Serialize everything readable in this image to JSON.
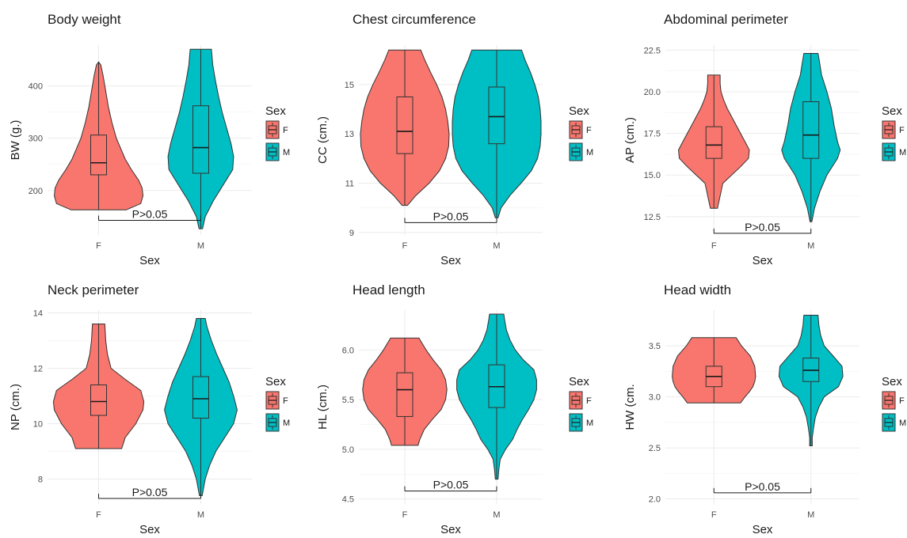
{
  "colors": {
    "F": "#F8766D",
    "M": "#00BFC4",
    "grid": "#ebebeb",
    "ink": "#1a1a1a"
  },
  "legend": {
    "title": "Sex",
    "entries": [
      "F",
      "M"
    ]
  },
  "chart_data": [
    {
      "type": "violin",
      "title": "Body weight",
      "xlabel": "Sex",
      "ylabel": "BW (g.)",
      "categories": [
        "F",
        "M"
      ],
      "ylim": [
        115,
        478
      ],
      "yticks": [
        200,
        300,
        400
      ],
      "yticklabels": [
        "200",
        "300",
        "400"
      ],
      "significance": {
        "label": "P>0.05",
        "y": 143
      },
      "groups": [
        {
          "name": "F",
          "min": 163,
          "max": 446,
          "q1": 230,
          "median": 253,
          "q3": 306,
          "profile": [
            [
              163,
              0.62
            ],
            [
              175,
              0.95
            ],
            [
              190,
              1.0
            ],
            [
              205,
              0.98
            ],
            [
              220,
              0.9
            ],
            [
              240,
              0.74
            ],
            [
              260,
              0.6
            ],
            [
              280,
              0.5
            ],
            [
              300,
              0.4
            ],
            [
              330,
              0.3
            ],
            [
              360,
              0.22
            ],
            [
              390,
              0.16
            ],
            [
              420,
              0.1
            ],
            [
              440,
              0.05
            ],
            [
              446,
              0.0
            ]
          ]
        },
        {
          "name": "M",
          "min": 127,
          "max": 470,
          "q1": 233,
          "median": 282,
          "q3": 362,
          "profile": [
            [
              127,
              0.04
            ],
            [
              150,
              0.1
            ],
            [
              180,
              0.28
            ],
            [
              210,
              0.5
            ],
            [
              240,
              0.72
            ],
            [
              265,
              0.74
            ],
            [
              290,
              0.68
            ],
            [
              320,
              0.58
            ],
            [
              350,
              0.48
            ],
            [
              380,
              0.4
            ],
            [
              410,
              0.33
            ],
            [
              440,
              0.27
            ],
            [
              470,
              0.24
            ]
          ]
        }
      ]
    },
    {
      "type": "violin",
      "title": "Chest circumference",
      "xlabel": "Sex",
      "ylabel": "CC (cm.)",
      "categories": [
        "F",
        "M"
      ],
      "ylim": [
        8.9,
        16.6
      ],
      "yticks": [
        9,
        11,
        13,
        15
      ],
      "yticklabels": [
        "9",
        "11",
        "13",
        "15"
      ],
      "significance": {
        "label": "P>0.05",
        "y": 9.4
      },
      "groups": [
        {
          "name": "F",
          "min": 10.1,
          "max": 16.4,
          "q1": 12.2,
          "median": 13.1,
          "q3": 14.5,
          "profile": [
            [
              10.1,
              0.06
            ],
            [
              10.5,
              0.25
            ],
            [
              11.0,
              0.55
            ],
            [
              11.5,
              0.78
            ],
            [
              12.0,
              0.92
            ],
            [
              12.5,
              0.99
            ],
            [
              13.0,
              1.0
            ],
            [
              13.5,
              0.97
            ],
            [
              14.0,
              0.92
            ],
            [
              14.5,
              0.84
            ],
            [
              15.0,
              0.72
            ],
            [
              15.5,
              0.58
            ],
            [
              16.0,
              0.45
            ],
            [
              16.4,
              0.36
            ]
          ]
        },
        {
          "name": "M",
          "min": 9.6,
          "max": 16.4,
          "q1": 12.6,
          "median": 13.7,
          "q3": 14.9,
          "profile": [
            [
              9.6,
              0.03
            ],
            [
              10.0,
              0.1
            ],
            [
              10.5,
              0.3
            ],
            [
              11.0,
              0.55
            ],
            [
              11.5,
              0.78
            ],
            [
              12.0,
              0.92
            ],
            [
              12.5,
              0.98
            ],
            [
              13.0,
              1.0
            ],
            [
              13.5,
              1.0
            ],
            [
              14.0,
              0.98
            ],
            [
              14.5,
              0.94
            ],
            [
              15.0,
              0.86
            ],
            [
              15.5,
              0.76
            ],
            [
              16.0,
              0.64
            ],
            [
              16.4,
              0.56
            ]
          ]
        }
      ]
    },
    {
      "type": "violin",
      "title": "Abdominal perimeter",
      "xlabel": "Sex",
      "ylabel": "AP (cm.)",
      "categories": [
        "F",
        "M"
      ],
      "ylim": [
        11.4,
        22.8
      ],
      "yticks": [
        12.5,
        15.0,
        17.5,
        20.0,
        22.5
      ],
      "yticklabels": [
        "12.5",
        "15.0",
        "17.5",
        "20.0",
        "22.5"
      ],
      "significance": {
        "label": "P>0.05",
        "y": 11.5
      },
      "groups": [
        {
          "name": "F",
          "min": 13.0,
          "max": 21.0,
          "q1": 16.0,
          "median": 16.8,
          "q3": 17.9,
          "profile": [
            [
              13.0,
              0.08
            ],
            [
              13.5,
              0.12
            ],
            [
              14.5,
              0.2
            ],
            [
              15.5,
              0.6
            ],
            [
              16.0,
              0.78
            ],
            [
              16.5,
              0.8
            ],
            [
              17.0,
              0.7
            ],
            [
              17.5,
              0.6
            ],
            [
              18.0,
              0.5
            ],
            [
              18.5,
              0.4
            ],
            [
              19.0,
              0.3
            ],
            [
              19.5,
              0.22
            ],
            [
              20.0,
              0.16
            ],
            [
              20.5,
              0.14
            ],
            [
              21.0,
              0.14
            ]
          ]
        },
        {
          "name": "M",
          "min": 12.2,
          "max": 22.3,
          "q1": 16.0,
          "median": 17.4,
          "q3": 19.4,
          "profile": [
            [
              12.2,
              0.02
            ],
            [
              13.0,
              0.08
            ],
            [
              14.0,
              0.2
            ],
            [
              15.0,
              0.36
            ],
            [
              16.0,
              0.6
            ],
            [
              16.5,
              0.66
            ],
            [
              17.0,
              0.6
            ],
            [
              18.0,
              0.52
            ],
            [
              19.0,
              0.46
            ],
            [
              20.0,
              0.36
            ],
            [
              21.0,
              0.24
            ],
            [
              22.0,
              0.18
            ],
            [
              22.3,
              0.16
            ]
          ]
        }
      ]
    },
    {
      "type": "violin",
      "title": "Neck perimeter",
      "xlabel": "Sex",
      "ylabel": "NP (cm.)",
      "categories": [
        "F",
        "M"
      ],
      "ylim": [
        7.1,
        14.1
      ],
      "yticks": [
        8,
        10,
        12,
        14
      ],
      "yticklabels": [
        "8",
        "10",
        "12",
        "14"
      ],
      "significance": {
        "label": "P>0.05",
        "y": 7.3
      },
      "groups": [
        {
          "name": "F",
          "min": 9.1,
          "max": 13.6,
          "q1": 10.3,
          "median": 10.8,
          "q3": 11.4,
          "profile": [
            [
              9.1,
              0.52
            ],
            [
              9.5,
              0.6
            ],
            [
              10.0,
              0.84
            ],
            [
              10.5,
              1.0
            ],
            [
              10.8,
              1.02
            ],
            [
              11.2,
              0.95
            ],
            [
              11.6,
              0.6
            ],
            [
              12.0,
              0.28
            ],
            [
              12.5,
              0.2
            ],
            [
              13.0,
              0.16
            ],
            [
              13.6,
              0.14
            ]
          ]
        },
        {
          "name": "M",
          "min": 7.4,
          "max": 13.8,
          "q1": 10.2,
          "median": 10.9,
          "q3": 11.7,
          "profile": [
            [
              7.4,
              0.03
            ],
            [
              8.0,
              0.1
            ],
            [
              8.5,
              0.2
            ],
            [
              9.0,
              0.34
            ],
            [
              9.5,
              0.54
            ],
            [
              10.0,
              0.74
            ],
            [
              10.5,
              0.82
            ],
            [
              11.0,
              0.74
            ],
            [
              11.5,
              0.64
            ],
            [
              12.0,
              0.5
            ],
            [
              12.5,
              0.36
            ],
            [
              13.0,
              0.24
            ],
            [
              13.5,
              0.14
            ],
            [
              13.8,
              0.1
            ]
          ]
        }
      ]
    },
    {
      "type": "violin",
      "title": "Head length",
      "xlabel": "Sex",
      "ylabel": "HL (cm.)",
      "categories": [
        "F",
        "M"
      ],
      "ylim": [
        4.45,
        6.4
      ],
      "yticks": [
        4.5,
        5.0,
        5.5,
        6.0
      ],
      "yticklabels": [
        "4.5",
        "5.0",
        "5.5",
        "6.0"
      ],
      "significance": {
        "label": "P>0.05",
        "y": 4.58
      },
      "groups": [
        {
          "name": "F",
          "min": 5.04,
          "max": 6.12,
          "q1": 5.33,
          "median": 5.6,
          "q3": 5.77,
          "profile": [
            [
              5.04,
              0.3
            ],
            [
              5.1,
              0.34
            ],
            [
              5.2,
              0.44
            ],
            [
              5.3,
              0.62
            ],
            [
              5.4,
              0.82
            ],
            [
              5.5,
              0.92
            ],
            [
              5.6,
              0.95
            ],
            [
              5.7,
              0.92
            ],
            [
              5.8,
              0.82
            ],
            [
              5.9,
              0.64
            ],
            [
              6.0,
              0.48
            ],
            [
              6.12,
              0.32
            ]
          ]
        },
        {
          "name": "M",
          "min": 4.7,
          "max": 6.36,
          "q1": 5.42,
          "median": 5.63,
          "q3": 5.85,
          "profile": [
            [
              4.7,
              0.03
            ],
            [
              4.8,
              0.05
            ],
            [
              4.9,
              0.08
            ],
            [
              5.0,
              0.2
            ],
            [
              5.1,
              0.36
            ],
            [
              5.2,
              0.46
            ],
            [
              5.3,
              0.58
            ],
            [
              5.4,
              0.72
            ],
            [
              5.5,
              0.84
            ],
            [
              5.6,
              0.9
            ],
            [
              5.7,
              0.9
            ],
            [
              5.8,
              0.84
            ],
            [
              5.9,
              0.6
            ],
            [
              6.0,
              0.42
            ],
            [
              6.1,
              0.3
            ],
            [
              6.2,
              0.22
            ],
            [
              6.3,
              0.18
            ],
            [
              6.36,
              0.16
            ]
          ]
        }
      ]
    },
    {
      "type": "violin",
      "title": "Head width",
      "xlabel": "Sex",
      "ylabel": "HW (cm.",
      "categories": [
        "F",
        "M"
      ],
      "ylim": [
        1.95,
        3.85
      ],
      "yticks": [
        2.0,
        2.5,
        3.0,
        3.5
      ],
      "yticklabels": [
        "2.0",
        "2.5",
        "3.0",
        "3.5"
      ],
      "significance": {
        "label": "P>0.05",
        "y": 2.06
      },
      "groups": [
        {
          "name": "F",
          "min": 2.94,
          "max": 3.58,
          "q1": 3.1,
          "median": 3.2,
          "q3": 3.3,
          "profile": [
            [
              2.94,
              0.6
            ],
            [
              3.0,
              0.7
            ],
            [
              3.05,
              0.8
            ],
            [
              3.1,
              0.88
            ],
            [
              3.15,
              0.92
            ],
            [
              3.2,
              0.94
            ],
            [
              3.3,
              0.92
            ],
            [
              3.4,
              0.82
            ],
            [
              3.5,
              0.62
            ],
            [
              3.58,
              0.5
            ]
          ]
        },
        {
          "name": "M",
          "min": 2.52,
          "max": 3.8,
          "q1": 3.15,
          "median": 3.26,
          "q3": 3.38,
          "profile": [
            [
              2.52,
              0.03
            ],
            [
              2.6,
              0.03
            ],
            [
              2.7,
              0.06
            ],
            [
              2.8,
              0.1
            ],
            [
              2.9,
              0.18
            ],
            [
              3.0,
              0.3
            ],
            [
              3.1,
              0.62
            ],
            [
              3.2,
              0.72
            ],
            [
              3.3,
              0.7
            ],
            [
              3.4,
              0.5
            ],
            [
              3.5,
              0.3
            ],
            [
              3.6,
              0.22
            ],
            [
              3.7,
              0.18
            ],
            [
              3.8,
              0.16
            ]
          ]
        }
      ]
    }
  ]
}
